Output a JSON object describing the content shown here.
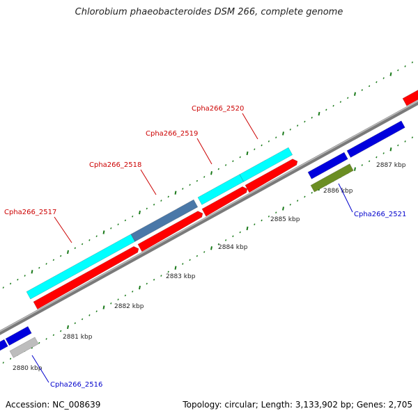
{
  "title": "Chlorobium phaeobacteroides DSM 266, complete genome",
  "footer": {
    "accession": "Accession: NC_008639",
    "topology": "Topology: circular; Length: 3,133,902 bp; Genes: 2,705"
  },
  "colors": {
    "backbone": "#8a8a8a",
    "tick": "#1a7a1a",
    "forward_label": "#cc0000",
    "reverse_label": "#0000cc",
    "cds": "#ff0000",
    "rna": "#00ffff",
    "rna_selected": "#4a78a8",
    "reverse_gene": "#0000dd",
    "olive_gene": "#6b8e23",
    "grey_gene": "#bdbdbd"
  },
  "scale_labels": [
    "2880 kbp",
    "2881 kbp",
    "2882 kbp",
    "2883 kbp",
    "2884 kbp",
    "2885 kbp",
    "2886 kbp",
    "2887 kbp"
  ],
  "gene_labels": [
    {
      "text": "Cpha266_2517",
      "strand": "forward"
    },
    {
      "text": "Cpha266_2518",
      "strand": "forward"
    },
    {
      "text": "Cpha266_2519",
      "strand": "forward"
    },
    {
      "text": "Cpha266_2520",
      "strand": "forward"
    },
    {
      "text": "Cpha266_2521",
      "strand": "reverse"
    },
    {
      "text": "Cpha266_2516",
      "strand": "reverse"
    }
  ]
}
